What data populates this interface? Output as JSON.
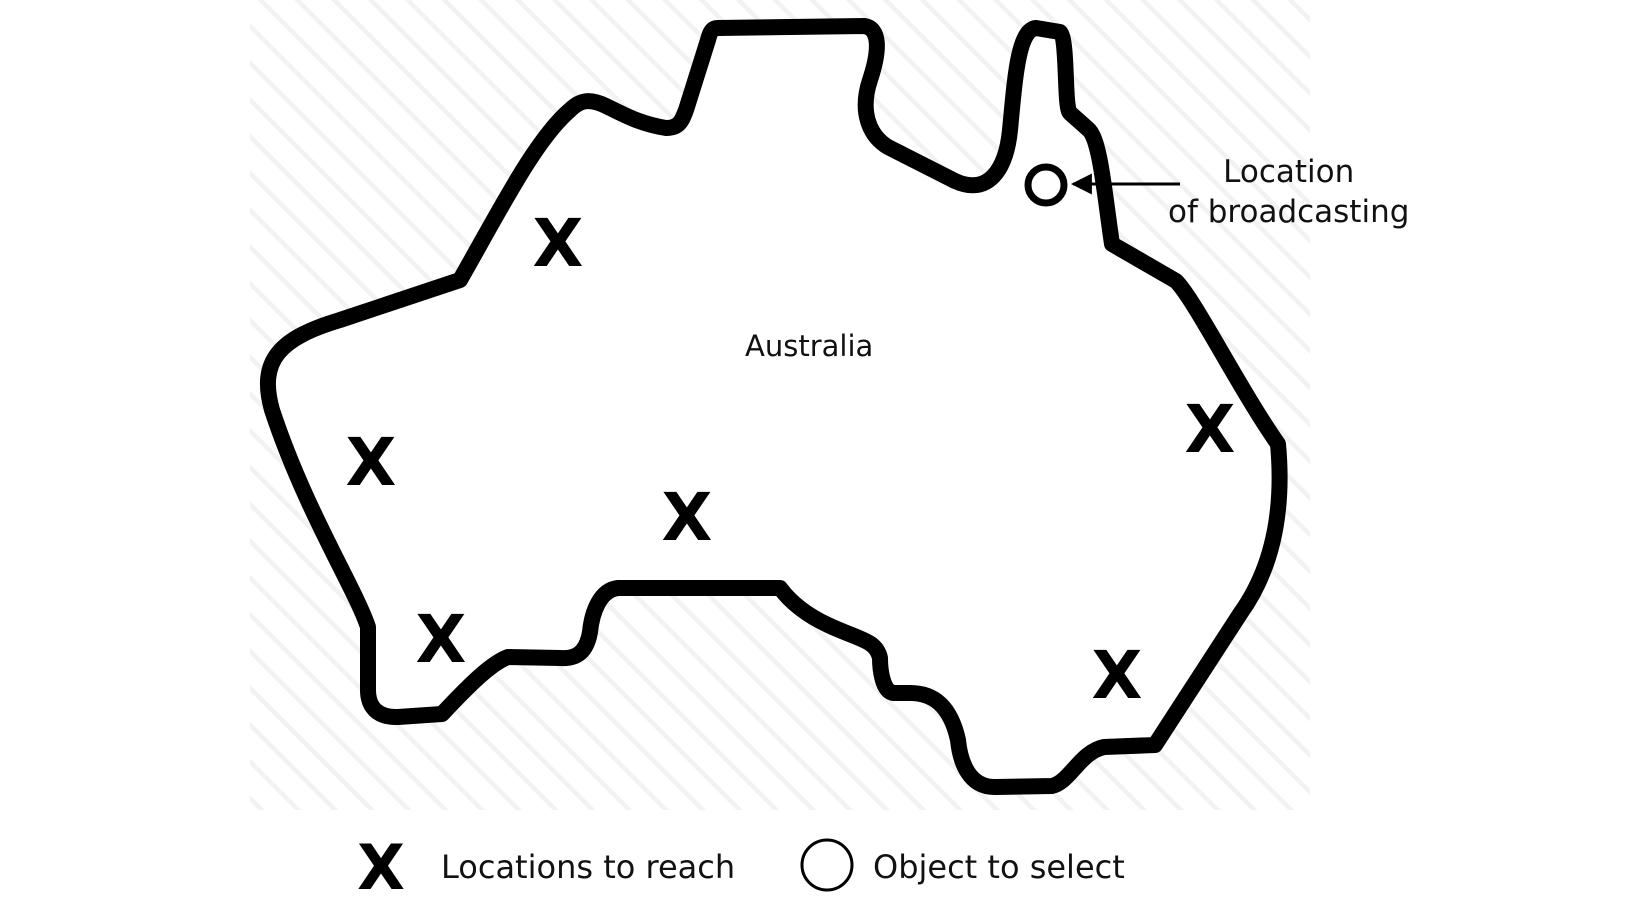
{
  "map": {
    "region_name": "Australia",
    "outline_color": "#000000",
    "background_hatch_color": "#f2f2f2",
    "target_marker": "X",
    "target_count": 6,
    "broadcast": {
      "marker_icon": "circle-icon",
      "label": "Location\nof broadcasting"
    }
  },
  "legend": {
    "x_symbol": "X",
    "x_label": "Locations to reach",
    "o_symbol_icon": "circle-icon",
    "o_label": "Object to select"
  }
}
